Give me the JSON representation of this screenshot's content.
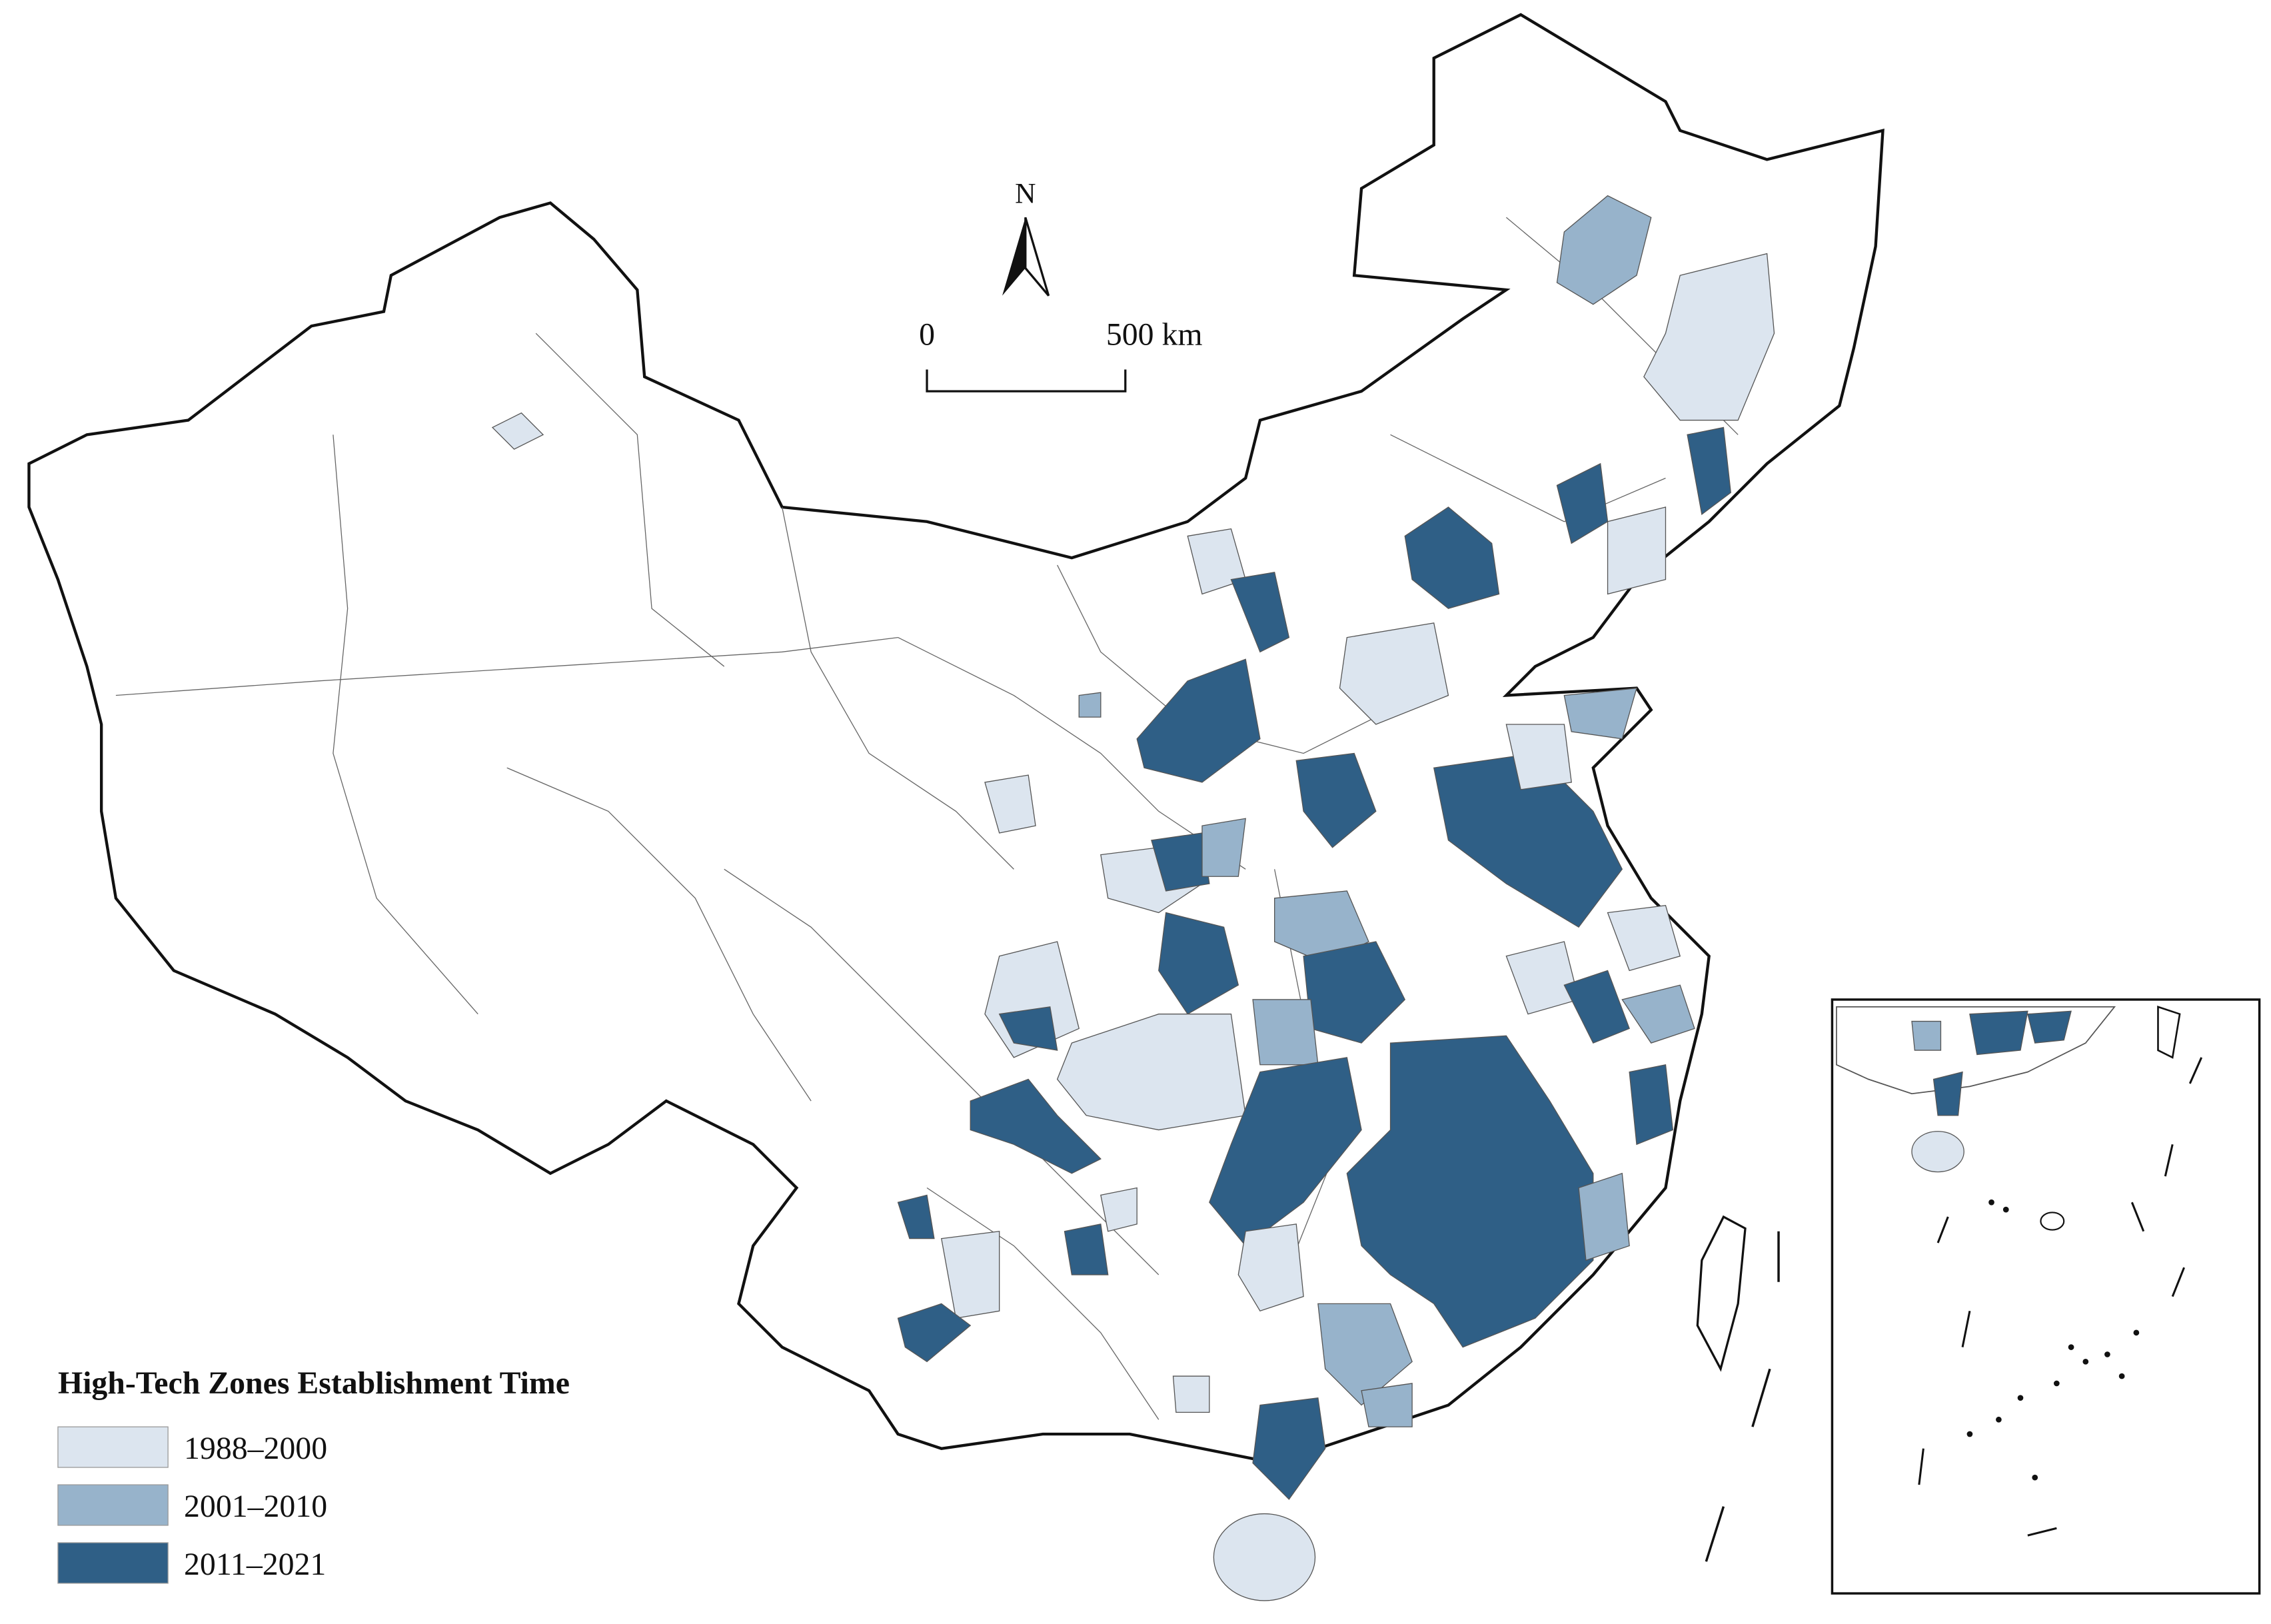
{
  "map": {
    "north_label": "N",
    "scale_bar": {
      "start": "0",
      "end": "500 km"
    },
    "legend": {
      "title": "High-Tech Zones Establishment Time",
      "items": [
        {
          "label": "1988–2000",
          "color": "#dce5ef"
        },
        {
          "label": "2001–2010",
          "color": "#97b3cb"
        },
        {
          "label": "2011–2021",
          "color": "#2f5f86"
        }
      ]
    }
  }
}
